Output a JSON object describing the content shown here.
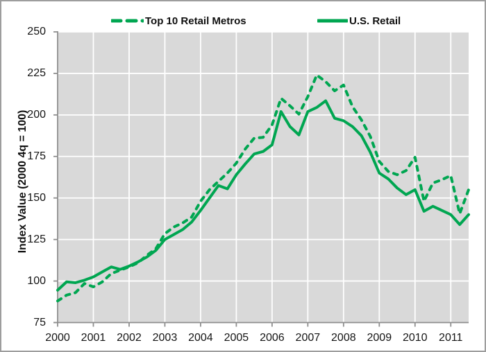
{
  "chart_data": {
    "type": "line",
    "title": "",
    "xlabel": "",
    "ylabel": "Index Value (2000 4q = 100)",
    "xlim": [
      2000,
      2011.5
    ],
    "ylim": [
      75,
      250
    ],
    "xticks": [
      2000,
      2001,
      2002,
      2003,
      2004,
      2005,
      2006,
      2007,
      2008,
      2009,
      2010,
      2011
    ],
    "yticks": [
      75,
      100,
      125,
      150,
      175,
      200,
      225,
      250
    ],
    "grid": true,
    "legend_position": "top",
    "x": [
      2000.0,
      2000.25,
      2000.5,
      2000.75,
      2001.0,
      2001.25,
      2001.5,
      2001.75,
      2002.0,
      2002.25,
      2002.5,
      2002.75,
      2003.0,
      2003.25,
      2003.5,
      2003.75,
      2004.0,
      2004.25,
      2004.5,
      2004.75,
      2005.0,
      2005.25,
      2005.5,
      2005.75,
      2006.0,
      2006.25,
      2006.5,
      2006.75,
      2007.0,
      2007.25,
      2007.5,
      2007.75,
      2008.0,
      2008.25,
      2008.5,
      2008.75,
      2009.0,
      2009.25,
      2009.5,
      2009.75,
      2010.0,
      2010.25,
      2010.5,
      2010.75,
      2011.0,
      2011.25,
      2011.5
    ],
    "series": [
      {
        "name": "Top 10 Retail Metros",
        "style": "dashed",
        "values": [
          88,
          91.5,
          93,
          98.5,
          96.5,
          99.5,
          104.5,
          106.5,
          108.5,
          111,
          115.5,
          119.5,
          128.5,
          132.5,
          135,
          138.5,
          148,
          155,
          160,
          165,
          171,
          179.5,
          186,
          186.5,
          194,
          210,
          205.5,
          200.5,
          211,
          224,
          220,
          214.5,
          218,
          205,
          197,
          187,
          172,
          166,
          164,
          166.5,
          174.5,
          148,
          159,
          161,
          163.5,
          140.5,
          155
        ]
      },
      {
        "name": "U.S. Retail",
        "style": "solid",
        "values": [
          94.5,
          99.5,
          99,
          100.5,
          102.5,
          105.5,
          108.5,
          107,
          109,
          111.5,
          114.5,
          118.5,
          125,
          128,
          131,
          135.5,
          142.5,
          150,
          157.5,
          155.5,
          164,
          170.5,
          176.5,
          178,
          182,
          202,
          193,
          188,
          202,
          204.5,
          208.5,
          198,
          196.5,
          193,
          187.5,
          177.5,
          165,
          161.5,
          156,
          152,
          155,
          142,
          145,
          142.5,
          140,
          134,
          140
        ]
      }
    ]
  },
  "colors": {
    "series_green": "#00a651",
    "plot_background": "#d9d9d9",
    "gridline": "#ffffff",
    "axis": "#8e8e8e",
    "text": "#141414",
    "frame_border": "#9d9d9d"
  }
}
